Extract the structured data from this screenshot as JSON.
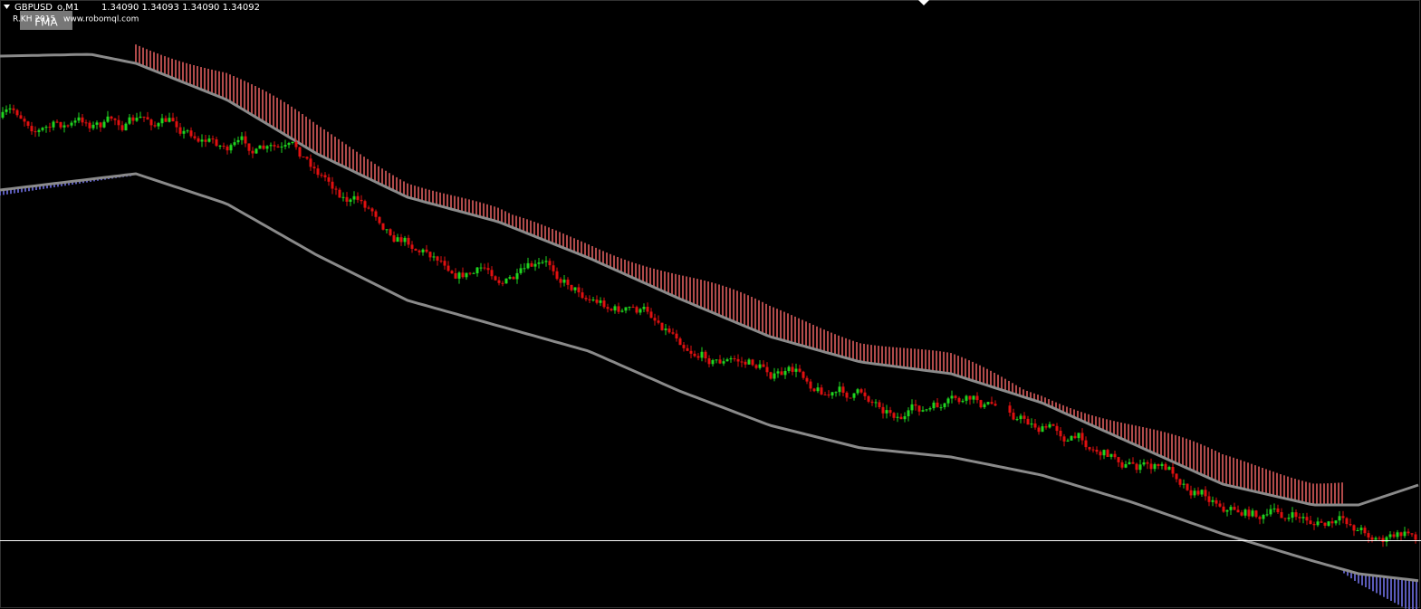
{
  "header": {
    "symbol": "GBPUSD_o,M1",
    "prices": "1.34090 1.34093 1.34090 1.34092"
  },
  "indicator": {
    "button": "FMA",
    "author": "R.KH 2015",
    "website": "www.robomql.com"
  }
}
